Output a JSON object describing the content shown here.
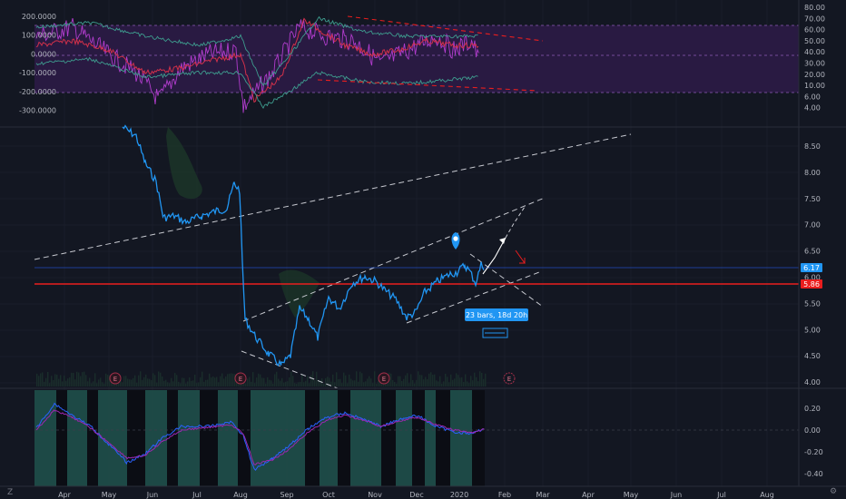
{
  "colors": {
    "background": "#131722",
    "grid": "#1e2230",
    "price_line": "#2196f3",
    "support_line": "#e91e1e",
    "band": "#2a1a45",
    "osc_up": "#1f4f4a",
    "osc_down": "#0b0d14"
  },
  "top_panel": {
    "left_ticks": [
      "200.0000",
      "100.0000",
      "0.0000",
      "-100.0000",
      "-200.0000",
      "-300.0000"
    ],
    "right_ticks": [
      "80.00",
      "70.00",
      "60.00",
      "50.00",
      "40.00",
      "30.00",
      "20.00",
      "10.00",
      "6.00",
      "4.00"
    ]
  },
  "main_panel": {
    "price_ticks": [
      "8.50",
      "8.00",
      "7.50",
      "7.00",
      "6.50",
      "6.00",
      "5.50",
      "5.00",
      "4.50",
      "4.00"
    ],
    "current_price_tag": "6.17",
    "support_price_tag": "5.86",
    "measure_label": "23 bars, 18d 20h",
    "earnings_marker": "E"
  },
  "bottom_panel": {
    "ticks": [
      "0.20",
      "0.00",
      "-0.20",
      "-0.40"
    ]
  },
  "time_axis": [
    "Apr",
    "May",
    "Jun",
    "Jul",
    "Aug",
    "Sep",
    "Oct",
    "Nov",
    "Dec",
    "2020",
    "Feb",
    "Mar",
    "Apr",
    "May",
    "Jun",
    "Jul",
    "Aug"
  ],
  "corner_left": "Z",
  "corner_right": "⚙"
}
